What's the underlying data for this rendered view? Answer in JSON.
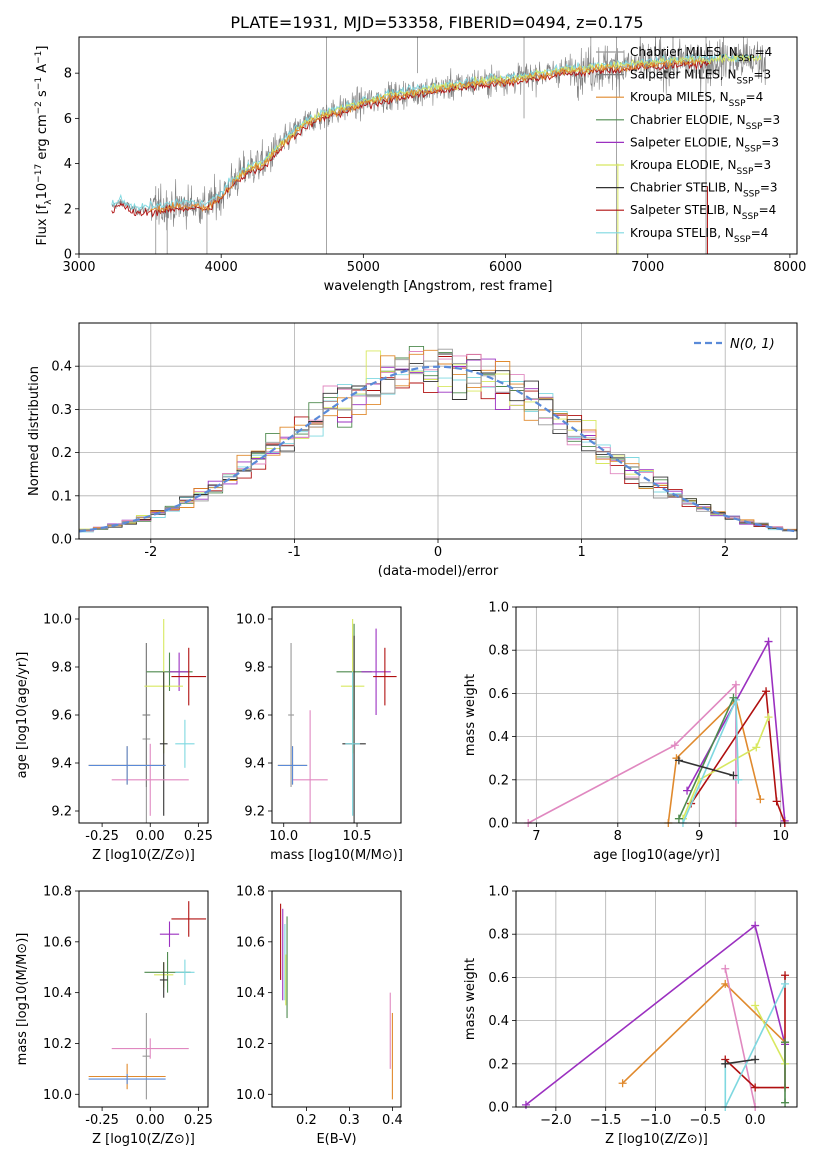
{
  "figure": {
    "title": "PLATE=1931, MJD=53358, FIBERID=0494, z=0.175"
  },
  "models": [
    {
      "name": "Chabrier MILES, N$_{SSP}$=4",
      "color": "#999999"
    },
    {
      "name": "Salpeter MILES, N$_{SSP}$=3",
      "color": "#7f7f7f"
    },
    {
      "name": "Kroupa MILES, N$_{SSP}$=4",
      "color": "#e08a2e"
    },
    {
      "name": "Chabrier ELODIE, N$_{SSP}$=3",
      "color": "#4e8a4e"
    },
    {
      "name": "Salpeter ELODIE, N$_{SSP}$=3",
      "color": "#9b30c0"
    },
    {
      "name": "Kroupa ELODIE, N$_{SSP}$=3",
      "color": "#d8e860"
    },
    {
      "name": "Chabrier STELIB, N$_{SSP}$=3",
      "color": "#333333"
    },
    {
      "name": "Salpeter STELIB, N$_{SSP}$=4",
      "color": "#b01010"
    },
    {
      "name": "Kroupa STELIB, N$_{SSP}$=4",
      "color": "#7fd8e0"
    }
  ],
  "legend_labels": [
    "Chabrier MILES, N",
    "Salpeter MILES, N",
    "Kroupa MILES, N",
    "Chabrier ELODIE, N",
    "Salpeter ELODIE, N",
    "Kroupa ELODIE, N",
    "Chabrier STELIB, N",
    "Salpeter STELIB, N",
    "Kroupa STELIB, N"
  ],
  "legend_nssp": [
    "4",
    "3",
    "4",
    "3",
    "3",
    "3",
    "3",
    "4",
    "4"
  ],
  "chart_data": [
    {
      "id": "spectrum",
      "type": "line",
      "xlabel": "wavelength [Angstrom, rest frame]",
      "ylabel": "Flux [f",
      "xlim": [
        3000,
        8050
      ],
      "ylim": [
        0,
        9.6
      ],
      "xticks": [
        3000,
        4000,
        5000,
        6000,
        7000,
        8000
      ],
      "yticks": [
        0,
        2,
        4,
        6,
        8
      ],
      "grid": false,
      "legend": "top-right",
      "continuum": [
        [
          3230,
          2.1
        ],
        [
          3300,
          2.3
        ],
        [
          3400,
          1.9
        ],
        [
          3500,
          2.0
        ],
        [
          3600,
          2.05
        ],
        [
          3700,
          2.15
        ],
        [
          3800,
          2.2
        ],
        [
          3900,
          2.1
        ],
        [
          4000,
          2.6
        ],
        [
          4100,
          3.3
        ],
        [
          4200,
          3.8
        ],
        [
          4300,
          4.0
        ],
        [
          4400,
          4.7
        ],
        [
          4500,
          5.3
        ],
        [
          4600,
          5.8
        ],
        [
          4700,
          6.1
        ],
        [
          4800,
          6.3
        ],
        [
          5000,
          6.7
        ],
        [
          5200,
          7.0
        ],
        [
          5400,
          7.2
        ],
        [
          5600,
          7.4
        ],
        [
          5800,
          7.6
        ],
        [
          6000,
          7.7
        ],
        [
          6200,
          7.9
        ],
        [
          6400,
          8.1
        ],
        [
          6600,
          8.2
        ],
        [
          6800,
          8.3
        ],
        [
          7000,
          8.4
        ],
        [
          7200,
          8.5
        ],
        [
          7400,
          8.55
        ],
        [
          7600,
          8.6
        ],
        [
          7800,
          8.6
        ]
      ]
    },
    {
      "id": "residuals",
      "type": "histogram",
      "xlabel": "(data-model)/error",
      "ylabel": "Normed distribution",
      "xlim": [
        -2.5,
        2.5
      ],
      "ylim": [
        0,
        0.5
      ],
      "xticks": [
        -2,
        -1,
        0,
        1,
        2
      ],
      "yticks": [
        0.0,
        0.1,
        0.2,
        0.3,
        0.4
      ],
      "grid": true,
      "legend": "top-right",
      "reference_label": "N(0, 1)",
      "reference_color": "#5a8ad8",
      "bin_width": 0.1
    },
    {
      "id": "age_vs_Z",
      "type": "scatter",
      "xlabel": "Z [log10(Z/Z⊙)]",
      "ylabel": "age  [log10(age/yr)]",
      "xlim": [
        -0.37,
        0.3
      ],
      "ylim": [
        9.15,
        10.05
      ],
      "xticks": [
        -0.25,
        0.0,
        0.25
      ],
      "yticks": [
        9.2,
        9.4,
        9.6,
        9.8,
        10.0
      ],
      "points": [
        {
          "x": -0.02,
          "y": 9.5,
          "xerr": 0.02,
          "yerr": 0.4,
          "color": "#999999"
        },
        {
          "x": -0.02,
          "y": 9.6,
          "xerr": 0.02,
          "yerr": 0.3,
          "color": "#7f7f7f"
        },
        {
          "x": -0.12,
          "y": 9.39,
          "xerr": 0.2,
          "yerr": 0.08,
          "color": "#e08a2e"
        },
        {
          "x": 0.1,
          "y": 9.78,
          "xerr": 0.12,
          "yerr": 0.08,
          "color": "#4e8a4e"
        },
        {
          "x": 0.15,
          "y": 9.78,
          "xerr": 0.05,
          "yerr": 0.08,
          "color": "#9b30c0"
        },
        {
          "x": 0.07,
          "y": 9.72,
          "xerr": 0.1,
          "yerr": 0.28,
          "color": "#d8e860"
        },
        {
          "x": 0.07,
          "y": 9.48,
          "xerr": 0.02,
          "yerr": 0.3,
          "color": "#333333"
        },
        {
          "x": 0.2,
          "y": 9.76,
          "xerr": 0.09,
          "yerr": 0.12,
          "color": "#b01010"
        },
        {
          "x": 0.18,
          "y": 9.48,
          "xerr": 0.05,
          "yerr": 0.1,
          "color": "#7fd8e0"
        },
        {
          "x": 0.0,
          "y": 9.33,
          "xerr": 0.2,
          "yerr": 0.15,
          "color": "#e088c0"
        },
        {
          "x": -0.12,
          "y": 9.39,
          "xerr": 0.2,
          "yerr": 0.08,
          "color": "#5a8ad8"
        }
      ]
    },
    {
      "id": "age_vs_mass",
      "type": "scatter",
      "xlabel": "mass [log10(M/M⊙)]",
      "ylabel": "",
      "xlim": [
        9.92,
        10.8
      ],
      "ylim": [
        9.15,
        10.05
      ],
      "xticks": [
        10.0,
        10.5
      ],
      "yticks": [
        9.2,
        9.4,
        9.6,
        9.8,
        10.0
      ],
      "points": [
        {
          "x": 10.05,
          "y": 9.6,
          "xerr": 0.02,
          "yerr": 0.3,
          "color": "#999999"
        },
        {
          "x": 10.06,
          "y": 9.39,
          "xerr": 0.1,
          "yerr": 0.08,
          "color": "#e08a2e"
        },
        {
          "x": 10.48,
          "y": 9.78,
          "xerr": 0.12,
          "yerr": 0.2,
          "color": "#4e8a4e"
        },
        {
          "x": 10.63,
          "y": 9.78,
          "xerr": 0.1,
          "yerr": 0.18,
          "color": "#9b30c0"
        },
        {
          "x": 10.47,
          "y": 9.72,
          "xerr": 0.08,
          "yerr": 0.28,
          "color": "#d8e860"
        },
        {
          "x": 10.48,
          "y": 9.48,
          "xerr": 0.08,
          "yerr": 0.45,
          "color": "#333333"
        },
        {
          "x": 10.69,
          "y": 9.76,
          "xerr": 0.08,
          "yerr": 0.12,
          "color": "#b01010"
        },
        {
          "x": 10.47,
          "y": 9.48,
          "xerr": 0.05,
          "yerr": 0.3,
          "color": "#7fd8e0"
        },
        {
          "x": 10.18,
          "y": 9.33,
          "xerr": 0.12,
          "yerr": 0.29,
          "color": "#e088c0"
        },
        {
          "x": 10.06,
          "y": 9.39,
          "xerr": 0.1,
          "yerr": 0.08,
          "color": "#5a8ad8"
        }
      ]
    },
    {
      "id": "massweight_vs_age",
      "type": "line",
      "xlabel": "age  [log10(age/yr)]",
      "ylabel": "mass weight",
      "xlim": [
        6.75,
        10.2
      ],
      "ylim": [
        0,
        1.0
      ],
      "xticks": [
        7,
        8,
        9,
        10
      ],
      "yticks": [
        0.0,
        0.2,
        0.4,
        0.6,
        0.8,
        1.0
      ],
      "grid": true,
      "series": [
        {
          "color": "#e088c0",
          "x": [
            6.9,
            8.7,
            9.45,
            9.45
          ],
          "y": [
            0.0,
            0.36,
            0.64,
            0.0
          ]
        },
        {
          "color": "#e08a2e",
          "x": [
            8.62,
            8.72,
            9.45,
            9.75
          ],
          "y": [
            0.0,
            0.3,
            0.57,
            0.11
          ]
        },
        {
          "color": "#9b30c0",
          "x": [
            8.85,
            9.85,
            10.05
          ],
          "y": [
            0.15,
            0.84,
            0.01
          ]
        },
        {
          "color": "#b01010",
          "x": [
            8.9,
            9.82,
            9.95,
            10.05
          ],
          "y": [
            0.09,
            0.61,
            0.1,
            0.0
          ]
        },
        {
          "color": "#d8e860",
          "x": [
            8.8,
            9.0,
            9.7,
            9.85
          ],
          "y": [
            0.02,
            0.2,
            0.35,
            0.49
          ]
        },
        {
          "color": "#7fd8e0",
          "x": [
            8.8,
            9.45,
            9.48
          ],
          "y": [
            0.0,
            0.57,
            0.2
          ]
        },
        {
          "color": "#4e8a4e",
          "x": [
            8.75,
            9.42
          ],
          "y": [
            0.02,
            0.58
          ]
        },
        {
          "color": "#333333",
          "x": [
            8.75,
            9.42
          ],
          "y": [
            0.29,
            0.22
          ]
        }
      ]
    },
    {
      "id": "mass_vs_Z",
      "type": "scatter",
      "xlabel": "Z [log10(Z/Z⊙)]",
      "ylabel": "mass [log10(M/M⊙)]",
      "xlim": [
        -0.37,
        0.3
      ],
      "ylim": [
        9.95,
        10.8
      ],
      "xticks": [
        -0.25,
        0.0,
        0.25
      ],
      "yticks": [
        10.0,
        10.2,
        10.4,
        10.6,
        10.8
      ],
      "points": [
        {
          "x": -0.02,
          "y": 10.15,
          "xerr": 0.02,
          "yerr": 0.17,
          "color": "#999999"
        },
        {
          "x": -0.12,
          "y": 10.07,
          "xerr": 0.2,
          "yerr": 0.05,
          "color": "#e08a2e"
        },
        {
          "x": 0.09,
          "y": 10.48,
          "xerr": 0.12,
          "yerr": 0.08,
          "color": "#4e8a4e"
        },
        {
          "x": 0.1,
          "y": 10.63,
          "xerr": 0.05,
          "yerr": 0.05,
          "color": "#9b30c0"
        },
        {
          "x": 0.07,
          "y": 10.47,
          "xerr": 0.05,
          "yerr": 0.05,
          "color": "#d8e860"
        },
        {
          "x": 0.07,
          "y": 10.45,
          "xerr": 0.02,
          "yerr": 0.07,
          "color": "#333333"
        },
        {
          "x": 0.2,
          "y": 10.69,
          "xerr": 0.09,
          "yerr": 0.07,
          "color": "#b01010"
        },
        {
          "x": 0.18,
          "y": 10.48,
          "xerr": 0.05,
          "yerr": 0.05,
          "color": "#7fd8e0"
        },
        {
          "x": 0.0,
          "y": 10.18,
          "xerr": 0.2,
          "yerr": 0.04,
          "color": "#e088c0"
        },
        {
          "x": -0.12,
          "y": 10.06,
          "xerr": 0.2,
          "yerr": 0.02,
          "color": "#5a8ad8"
        }
      ]
    },
    {
      "id": "mass_vs_EBV",
      "type": "scatter",
      "xlabel": "E(B-V)",
      "ylabel": "",
      "xlim": [
        0.12,
        0.42
      ],
      "ylim": [
        9.95,
        10.8
      ],
      "xticks": [
        0.1,
        0.2,
        0.3,
        0.4
      ],
      "yticks": [
        10.0,
        10.2,
        10.4,
        10.6,
        10.8
      ],
      "points": [
        {
          "x": 0.14,
          "y": 10.6,
          "xerr": 0.0,
          "yerr": 0.15,
          "color": "#b01010"
        },
        {
          "x": 0.145,
          "y": 10.55,
          "xerr": 0.0,
          "yerr": 0.18,
          "color": "#9b30c0"
        },
        {
          "x": 0.15,
          "y": 10.52,
          "xerr": 0.0,
          "yerr": 0.15,
          "color": "#7fd8e0"
        },
        {
          "x": 0.155,
          "y": 10.5,
          "xerr": 0.0,
          "yerr": 0.2,
          "color": "#4e8a4e"
        },
        {
          "x": 0.152,
          "y": 10.45,
          "xerr": 0.0,
          "yerr": 0.1,
          "color": "#d8e860"
        },
        {
          "x": 0.395,
          "y": 10.25,
          "xerr": 0.0,
          "yerr": 0.15,
          "color": "#e088c0"
        },
        {
          "x": 0.4,
          "y": 10.15,
          "xerr": 0.0,
          "yerr": 0.17,
          "color": "#e08a2e"
        }
      ]
    },
    {
      "id": "massweight_vs_Z",
      "type": "line",
      "xlabel": "Z [log10(Z/Z⊙)]",
      "ylabel": "mass weight",
      "xlim": [
        -2.4,
        0.42
      ],
      "ylim": [
        0,
        1.0
      ],
      "xticks": [
        -2.0,
        -1.5,
        -1.0,
        -0.5,
        0.0
      ],
      "yticks": [
        0.0,
        0.2,
        0.4,
        0.6,
        0.8,
        1.0
      ],
      "grid": true,
      "series": [
        {
          "color": "#9b30c0",
          "x": [
            -2.3,
            0.0,
            0.3
          ],
          "y": [
            0.01,
            0.84,
            0.29
          ]
        },
        {
          "color": "#e08a2e",
          "x": [
            -1.33,
            -0.3,
            0.3
          ],
          "y": [
            0.11,
            0.57,
            0.3
          ]
        },
        {
          "color": "#e088c0",
          "x": [
            -0.3,
            0.0
          ],
          "y": [
            0.64,
            0.0
          ]
        },
        {
          "color": "#b01010",
          "x": [
            -0.3,
            0.0,
            0.3,
            0.3
          ],
          "y": [
            0.22,
            0.09,
            0.09,
            0.61
          ]
        },
        {
          "color": "#d8e860",
          "x": [
            0.0,
            0.3
          ],
          "y": [
            0.47,
            0.2
          ]
        },
        {
          "color": "#7fd8e0",
          "x": [
            -0.3,
            -0.3,
            0.3
          ],
          "y": [
            0.2,
            0.0,
            0.57
          ]
        },
        {
          "color": "#333333",
          "x": [
            -0.3,
            0.0
          ],
          "y": [
            0.2,
            0.22
          ]
        },
        {
          "color": "#4e8a4e",
          "x": [
            0.3,
            0.3
          ],
          "y": [
            0.02,
            0.3
          ]
        }
      ]
    }
  ]
}
